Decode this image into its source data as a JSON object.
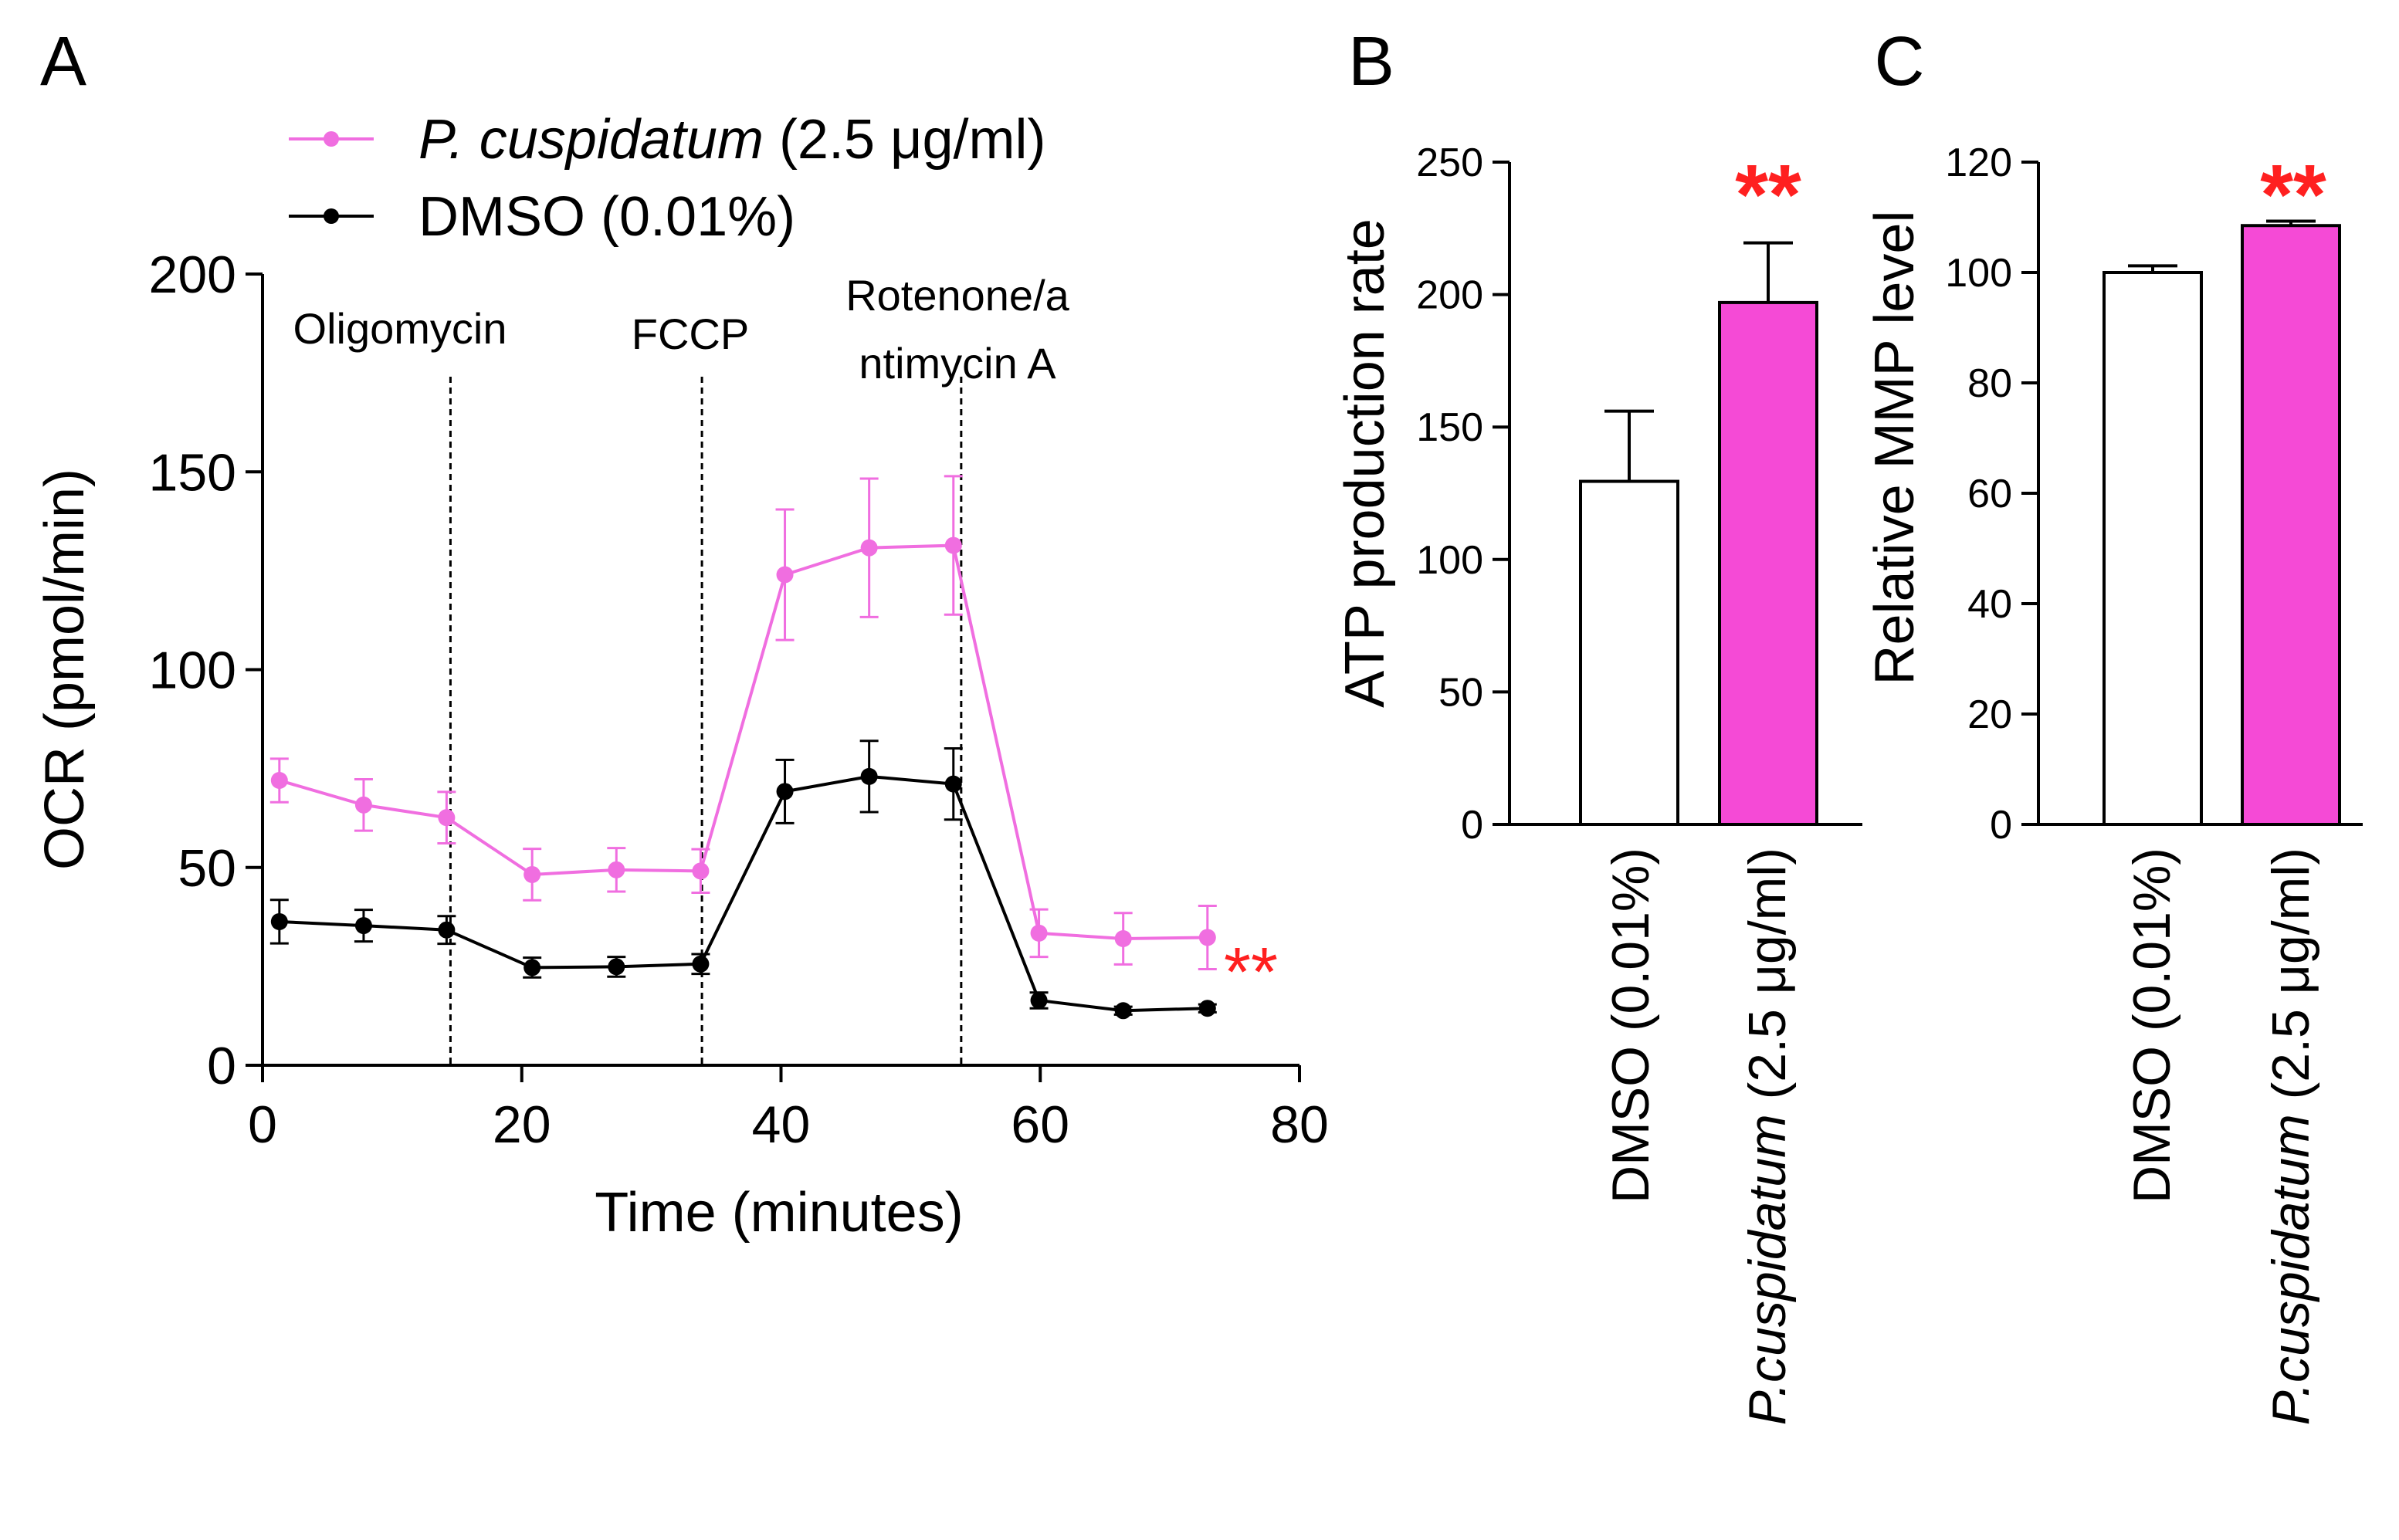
{
  "colors": {
    "pc": "#f06ee0",
    "pc_fill": "#f54ad6",
    "dmso": "#000000",
    "star": "#ff2020",
    "axis": "#000000"
  },
  "chart_data": [
    {
      "panel": "A",
      "type": "line",
      "title": "",
      "xlabel": "Time (minutes)",
      "ylabel": "OCR (pmol/min)",
      "xlim": [
        0,
        80
      ],
      "ylim": [
        0,
        200
      ],
      "x_ticks": [
        "0",
        "20",
        "40",
        "60",
        "80"
      ],
      "y_ticks": [
        "0",
        "50",
        "100",
        "150",
        "200"
      ],
      "x": [
        1.3,
        7.8,
        14.2,
        20.8,
        27.3,
        33.8,
        40.3,
        46.8,
        53.3,
        59.9,
        66.4,
        72.9
      ],
      "series": [
        {
          "name": "P. cuspidatum (2.5 μg/ml)",
          "name_italic": "P. cuspidatum",
          "name_rest": " (2.5 μg/ml)",
          "color": "#f06ee0",
          "values": [
            72,
            65.8,
            62.6,
            48.2,
            49.4,
            49.1,
            124,
            130.8,
            131.4,
            33.4,
            32,
            32.3
          ],
          "errors": [
            5.5,
            6.5,
            6.5,
            6.5,
            5.5,
            5.5,
            16.5,
            17.5,
            17.5,
            6,
            6.5,
            8
          ]
        },
        {
          "name": "DMSO (0.01%)",
          "color": "#000000",
          "values": [
            36.3,
            35.3,
            34.2,
            24.7,
            24.9,
            25.6,
            69.2,
            73,
            71.1,
            16.4,
            13.8,
            14.4
          ],
          "errors": [
            5.5,
            4,
            3.5,
            2.5,
            2.5,
            2.5,
            8,
            9,
            9,
            2,
            1,
            1
          ]
        }
      ],
      "injections": [
        {
          "label": "Oligomycin",
          "x": 14.5
        },
        {
          "label": "FCCP",
          "x": 33.9
        },
        {
          "label_lines": [
            "Rotenone/a",
            "ntimycin A"
          ],
          "x": 53.9
        }
      ],
      "significance": "**"
    },
    {
      "panel": "B",
      "type": "bar",
      "ylabel": "ATP production rate",
      "ylim": [
        0,
        250
      ],
      "y_ticks": [
        "0",
        "50",
        "100",
        "150",
        "200",
        "250"
      ],
      "categories": [
        {
          "label": "DMSO (0.01%)"
        },
        {
          "label_italic": "P.cuspidatum",
          "label_rest": " (2.5 μg/ml)"
        }
      ],
      "values": [
        129.5,
        197
      ],
      "errors": [
        26.5,
        22.5
      ],
      "fills": [
        "#ffffff",
        "#f54ad6"
      ],
      "significance": "**"
    },
    {
      "panel": "C",
      "type": "bar",
      "ylabel": "Relative MMP level",
      "ylim": [
        0,
        120
      ],
      "y_ticks": [
        "0",
        "20",
        "40",
        "60",
        "80",
        "100",
        "120"
      ],
      "categories": [
        {
          "label": "DMSO (0.01%)"
        },
        {
          "label_italic": "P.cuspidatum",
          "label_rest": " (2.5 μg/ml)"
        }
      ],
      "values": [
        100,
        108.5
      ],
      "errors": [
        1.2,
        0.8
      ],
      "fills": [
        "#ffffff",
        "#f54ad6"
      ],
      "significance": "**"
    }
  ]
}
